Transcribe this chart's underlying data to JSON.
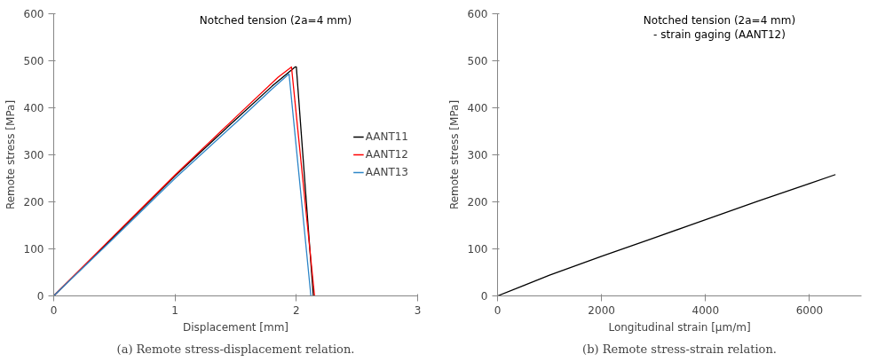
{
  "chart_data": [
    {
      "type": "line",
      "title": "Notched tension (2a=4 mm)",
      "xlabel": "Displacement [mm]",
      "ylabel": "Remote stress [MPa]",
      "annotations": [
        "(a) Remote stress-displacement relation."
      ],
      "xlim": [
        0,
        3
      ],
      "ylim": [
        0,
        600
      ],
      "xticks": [
        0,
        1,
        2,
        3
      ],
      "yticks": [
        0,
        100,
        200,
        300,
        400,
        500,
        600
      ],
      "grid": false,
      "legend": "right",
      "line_style": "solid",
      "series": [
        {
          "name": "AANT11",
          "color": "#000000",
          "x": [
            0,
            0.5,
            1,
            1.5,
            1.8,
            1.99,
            2.0,
            2.14
          ],
          "values": [
            0,
            127,
            255,
            375,
            446,
            487,
            487,
            0
          ]
        },
        {
          "name": "AANT12",
          "color": "#ff0000",
          "x": [
            0,
            0.5,
            1,
            1.5,
            1.85,
            1.96,
            2.15
          ],
          "values": [
            0,
            129,
            257,
            380,
            465,
            487,
            0
          ]
        },
        {
          "name": "AANT13",
          "color": "#2e86c8",
          "x": [
            0,
            0.5,
            1,
            1.5,
            1.8,
            1.94,
            2.12
          ],
          "values": [
            0,
            124,
            250,
            368,
            440,
            472,
            0
          ]
        }
      ]
    },
    {
      "type": "line",
      "title": "Notched tension (2a=4 mm)\n- strain gaging (AANT12)",
      "xlabel": "Longitudinal strain [µm/m]",
      "ylabel": "Remote stress [MPa]",
      "annotations": [
        "(b) Remote stress-strain relation."
      ],
      "xlim": [
        0,
        7000
      ],
      "ylim": [
        0,
        600
      ],
      "xticks": [
        0,
        2000,
        4000,
        6000
      ],
      "yticks": [
        0,
        100,
        200,
        300,
        400,
        500,
        600
      ],
      "grid": false,
      "line_style": "solid",
      "series": [
        {
          "color": "#000000",
          "x": [
            0,
            500,
            1000,
            2000,
            3000,
            4000,
            5000,
            6000,
            6500
          ],
          "values": [
            0,
            22,
            44,
            84,
            123,
            162,
            201,
            239,
            258
          ]
        }
      ]
    }
  ]
}
